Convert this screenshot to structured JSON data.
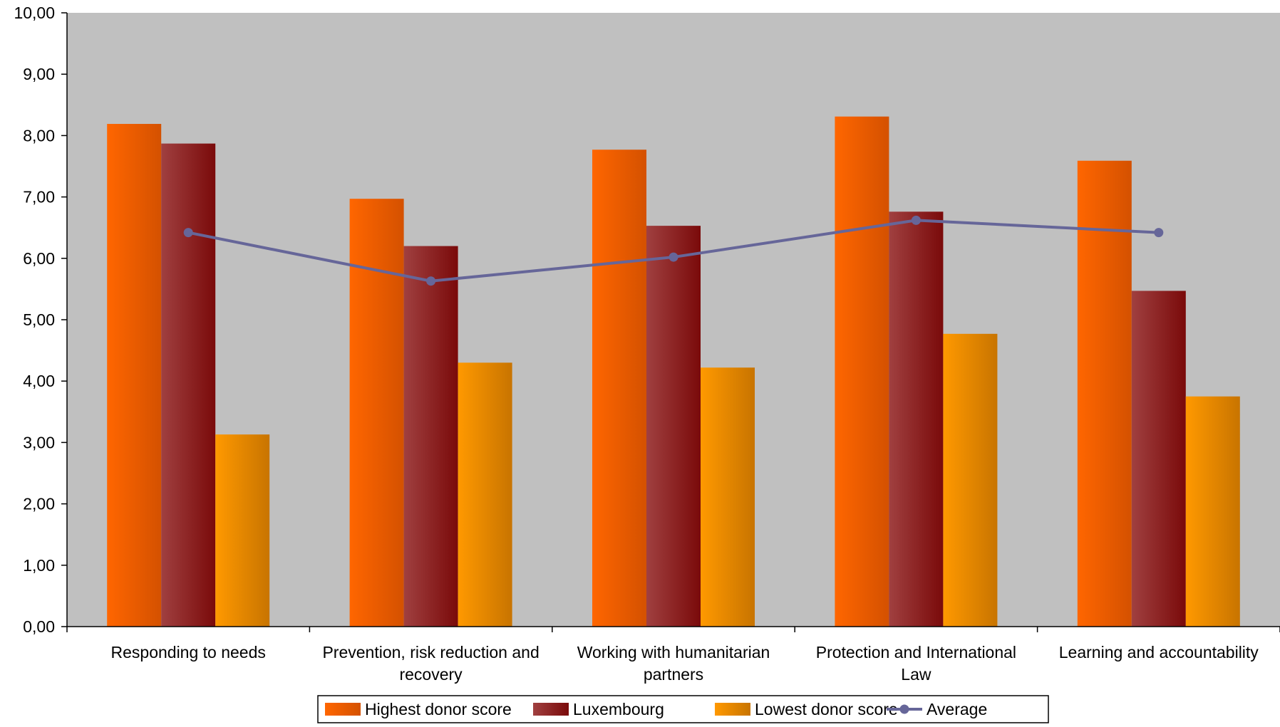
{
  "chart_data": {
    "type": "bar",
    "categories": [
      [
        "Responding to needs"
      ],
      [
        "Prevention, risk reduction and",
        "recovery"
      ],
      [
        "Working with humanitarian",
        "partners"
      ],
      [
        "Protection and International",
        "Law"
      ],
      [
        "Learning and accountability"
      ]
    ],
    "series": [
      {
        "name": "Highest donor score",
        "kind": "bar",
        "values": [
          8.19,
          6.97,
          7.77,
          8.31,
          7.59
        ],
        "color": "#ff6600",
        "color_dark": "#d45100"
      },
      {
        "name": "Luxembourg",
        "kind": "bar",
        "values": [
          7.87,
          6.2,
          6.53,
          6.76,
          5.47
        ],
        "color": "#a04040",
        "color_dark": "#7a0a0a"
      },
      {
        "name": "Lowest donor score",
        "kind": "bar",
        "values": [
          3.13,
          4.3,
          4.22,
          4.77,
          3.75
        ],
        "color": "#ff9900",
        "color_dark": "#c87400"
      },
      {
        "name": "Average",
        "kind": "line",
        "values": [
          6.42,
          5.63,
          6.02,
          6.62,
          6.42
        ],
        "color": "#666699"
      }
    ],
    "ylim": [
      0,
      10
    ],
    "yticks": [
      "0,00",
      "1,00",
      "2,00",
      "3,00",
      "4,00",
      "5,00",
      "6,00",
      "7,00",
      "8,00",
      "9,00",
      "10,00"
    ],
    "plot_background": "#c0c0c0",
    "legend_position": "bottom"
  }
}
